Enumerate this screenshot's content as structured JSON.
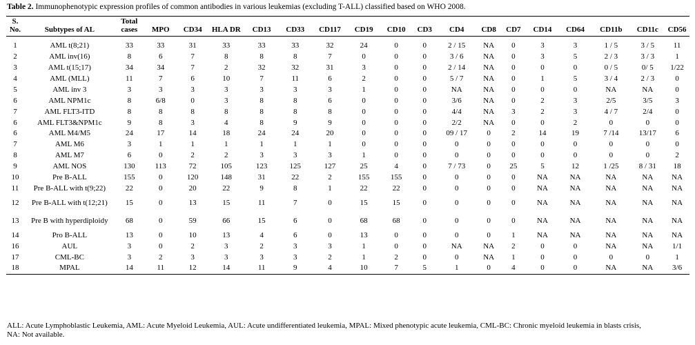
{
  "caption": {
    "label": "Table 2.",
    "text": " Immunophenotypic expression profiles of common antibodies in various leukemias (excluding T-ALL) classified based on WHO 2008."
  },
  "table": {
    "headers": [
      "S. No.",
      "Subtypes of AL",
      "Total cases",
      "MPO",
      "CD34",
      "HLA DR",
      "CD13",
      "CD33",
      "CD117",
      "CD19",
      "CD10",
      "CD3",
      "CD4",
      "CD8",
      "CD7",
      "CD14",
      "CD64",
      "CD11b",
      "CD11c",
      "CD56"
    ],
    "rows": [
      [
        "1",
        "AML t(8;21)",
        "33",
        "33",
        "31",
        "33",
        "33",
        "33",
        "32",
        "24",
        "0",
        "0",
        "2 / 15",
        "NA",
        "0",
        "3",
        "3",
        "1 / 5",
        "3 / 5",
        "11"
      ],
      [
        "2",
        "AML inv(16)",
        "8",
        "6",
        "7",
        "8",
        "8",
        "8",
        "7",
        "0",
        "0",
        "0",
        "3 / 6",
        "NA",
        "0",
        "3",
        "5",
        "2 / 3",
        "3 / 3",
        "1"
      ],
      [
        "3",
        "AML t(15;17)",
        "34",
        "34",
        "7",
        "2",
        "32",
        "32",
        "31",
        "3",
        "0",
        "0",
        "2 / 14",
        "NA",
        "0",
        "0",
        "0",
        "0 / 5",
        "0/ 5",
        "1/22"
      ],
      [
        "4",
        "AML (MLL)",
        "11",
        "7",
        "6",
        "10",
        "7",
        "11",
        "6",
        "2",
        "0",
        "0",
        "5 / 7",
        "NA",
        "0",
        "1",
        "5",
        "3 / 4",
        "2 / 3",
        "0"
      ],
      [
        "5",
        "AML inv 3",
        "3",
        "3",
        "3",
        "3",
        "3",
        "3",
        "3",
        "1",
        "0",
        "0",
        "NA",
        "NA",
        "0",
        "0",
        "0",
        "NA",
        "NA",
        "0"
      ],
      [
        "6",
        "AML NPM1c",
        "8",
        "6/8",
        "0",
        "3",
        "8",
        "8",
        "6",
        "0",
        "0",
        "0",
        "3/6",
        "NA",
        "0",
        "2",
        "3",
        "2/5",
        "3/5",
        "3"
      ],
      [
        "7",
        "AML FLT3-ITD",
        "8",
        "8",
        "8",
        "8",
        "8",
        "8",
        "8",
        "0",
        "0",
        "0",
        "4/4",
        "NA",
        "3",
        "2",
        "3",
        "4 / 7",
        "2/4",
        "0"
      ],
      [
        "6",
        "AML FLT3&NPM1c",
        "9",
        "8",
        "3",
        "4",
        "8",
        "9",
        "9",
        "0",
        "0",
        "0",
        "2/2",
        "NA",
        "0",
        "0",
        "2",
        "0",
        "0",
        "0"
      ],
      [
        "6",
        "AML M4/M5",
        "24",
        "17",
        "14",
        "18",
        "24",
        "24",
        "20",
        "0",
        "0",
        "0",
        "09 / 17",
        "0",
        "2",
        "14",
        "19",
        "7 /14",
        "13/17",
        "6"
      ],
      [
        "7",
        "AML M6",
        "3",
        "1",
        "1",
        "1",
        "1",
        "1",
        "1",
        "0",
        "0",
        "0",
        "0",
        "0",
        "0",
        "0",
        "0",
        "0",
        "0",
        "0"
      ],
      [
        "8",
        "AML M7",
        "6",
        "0",
        "2",
        "2",
        "3",
        "3",
        "3",
        "1",
        "0",
        "0",
        "0",
        "0",
        "0",
        "0",
        "0",
        "0",
        "0",
        "2"
      ],
      [
        "9",
        "AML NOS",
        "130",
        "113",
        "72",
        "105",
        "123",
        "125",
        "127",
        "25",
        "4",
        "0",
        "7 / 73",
        "0",
        "25",
        "5",
        "12",
        "1 /25",
        "8 / 31",
        "18"
      ],
      [
        "10",
        "Pre B-ALL",
        "155",
        "0",
        "120",
        "148",
        "31",
        "22",
        "2",
        "155",
        "155",
        "0",
        "0",
        "0",
        "0",
        "NA",
        "NA",
        "NA",
        "NA",
        "NA"
      ],
      [
        "11",
        "Pre B-ALL with t(9;22)",
        "22",
        "0",
        "20",
        "22",
        "9",
        "8",
        "1",
        "22",
        "22",
        "0",
        "0",
        "0",
        "0",
        "NA",
        "NA",
        "NA",
        "NA",
        "NA"
      ],
      [
        "12",
        "Pre B-ALL with t(12;21)",
        "15",
        "0",
        "13",
        "15",
        "11",
        "7",
        "0",
        "15",
        "15",
        "0",
        "0",
        "0",
        "0",
        "NA",
        "NA",
        "NA",
        "NA",
        "NA"
      ],
      [
        "13",
        "Pre B with hyperdiploidy",
        "68",
        "0",
        "59",
        "66",
        "15",
        "6",
        "0",
        "68",
        "68",
        "0",
        "0",
        "0",
        "0",
        "NA",
        "NA",
        "NA",
        "NA",
        "NA"
      ],
      [
        "14",
        "Pro B-ALL",
        "13",
        "0",
        "10",
        "13",
        "4",
        "6",
        "0",
        "13",
        "0",
        "0",
        "0",
        "0",
        "1",
        "NA",
        "NA",
        "NA",
        "NA",
        "NA"
      ],
      [
        "16",
        "AUL",
        "3",
        "0",
        "2",
        "3",
        "2",
        "3",
        "3",
        "1",
        "0",
        "0",
        "NA",
        "NA",
        "2",
        "0",
        "0",
        "NA",
        "NA",
        "1/1"
      ],
      [
        "17",
        "CML-BC",
        "3",
        "2",
        "3",
        "3",
        "3",
        "3",
        "2",
        "1",
        "2",
        "0",
        "0",
        "NA",
        "1",
        "0",
        "0",
        "0",
        "0",
        "1"
      ],
      [
        "18",
        "MPAL",
        "14",
        "11",
        "12",
        "14",
        "11",
        "9",
        "4",
        "10",
        "7",
        "5",
        "1",
        "0",
        "4",
        "0",
        "0",
        "NA",
        "NA",
        "3/6"
      ]
    ]
  },
  "footnote": "ALL: Acute Lymphoblastic Leukemia, AML: Acute Myeloid Leukemia, AUL: Acute undifferentiated leukemia, MPAL: Mixed phenotypic acute leukemia, CML-BC: Chronic myeloid leukemia in blasts crisis, NA: Not available."
}
